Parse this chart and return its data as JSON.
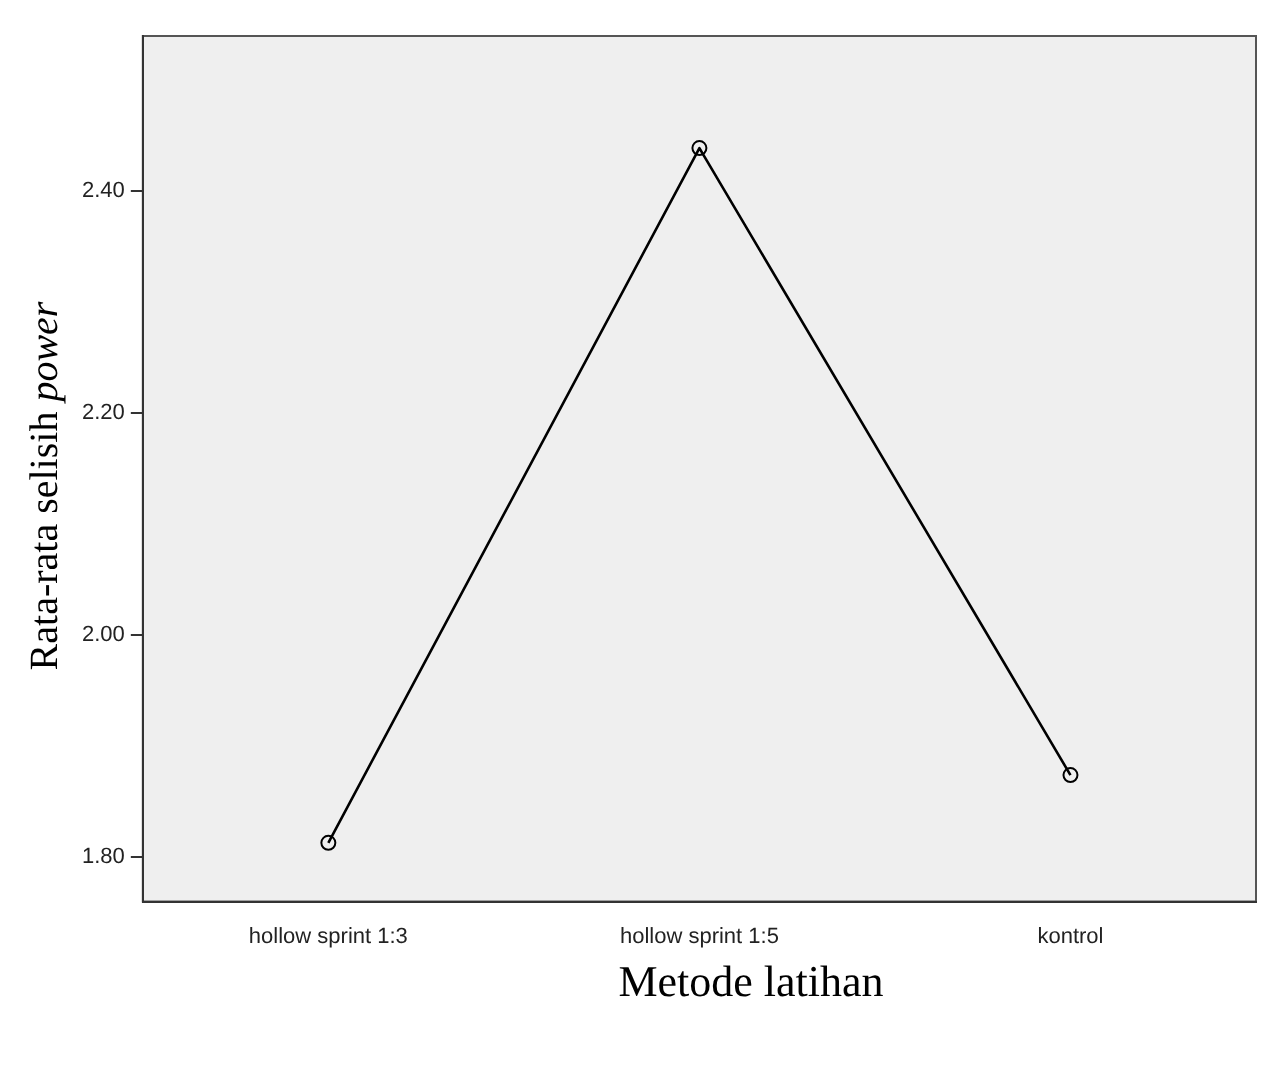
{
  "chart_data": {
    "type": "line",
    "xlabel": "Metode latihan",
    "ylabel": "Rata-rata selisih power",
    "categories": [
      "hollow sprint 1:3",
      "hollow sprint 1:5",
      "kontrol"
    ],
    "series": [
      {
        "color": "#000000",
        "values": [
          1.813,
          2.439,
          1.874
        ]
      }
    ],
    "ylim": [
      1.76,
      2.54
    ],
    "yticks": [
      {
        "value": 1.8,
        "label": "1.80"
      },
      {
        "value": 2.0,
        "label": "2.00"
      },
      {
        "value": 2.2,
        "label": "2.20"
      },
      {
        "value": 2.4,
        "label": "2.40"
      }
    ],
    "grid": false,
    "legend": false,
    "marker": "circle",
    "line_style": "solid"
  }
}
